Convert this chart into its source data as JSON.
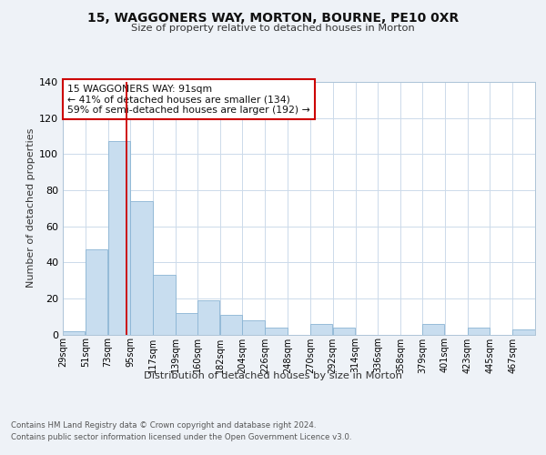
{
  "title": "15, WAGGONERS WAY, MORTON, BOURNE, PE10 0XR",
  "subtitle": "Size of property relative to detached houses in Morton",
  "xlabel": "Distribution of detached houses by size in Morton",
  "ylabel": "Number of detached properties",
  "bar_color": "#c8ddef",
  "bar_edge_color": "#8ab4d4",
  "background_color": "#eef2f7",
  "plot_bg_color": "#ffffff",
  "grid_color": "#ccdaea",
  "bins": [
    29,
    51,
    73,
    95,
    117,
    139,
    160,
    182,
    204,
    226,
    248,
    270,
    292,
    314,
    336,
    358,
    379,
    401,
    423,
    445,
    467
  ],
  "bin_labels": [
    "29sqm",
    "51sqm",
    "73sqm",
    "95sqm",
    "117sqm",
    "139sqm",
    "160sqm",
    "182sqm",
    "204sqm",
    "226sqm",
    "248sqm",
    "270sqm",
    "292sqm",
    "314sqm",
    "336sqm",
    "358sqm",
    "379sqm",
    "401sqm",
    "423sqm",
    "445sqm",
    "467sqm"
  ],
  "values": [
    2,
    47,
    107,
    74,
    33,
    12,
    19,
    11,
    8,
    4,
    0,
    6,
    4,
    0,
    0,
    0,
    6,
    0,
    4,
    0,
    3
  ],
  "vline_x": 91,
  "vline_color": "#cc0000",
  "ylim": [
    0,
    140
  ],
  "yticks": [
    0,
    20,
    40,
    60,
    80,
    100,
    120,
    140
  ],
  "annotation_line1": "15 WAGGONERS WAY: 91sqm",
  "annotation_line2": "← 41% of detached houses are smaller (134)",
  "annotation_line3": "59% of semi-detached houses are larger (192) →",
  "annotation_box_color": "#cc0000",
  "footnote1": "Contains HM Land Registry data © Crown copyright and database right 2024.",
  "footnote2": "Contains public sector information licensed under the Open Government Licence v3.0."
}
